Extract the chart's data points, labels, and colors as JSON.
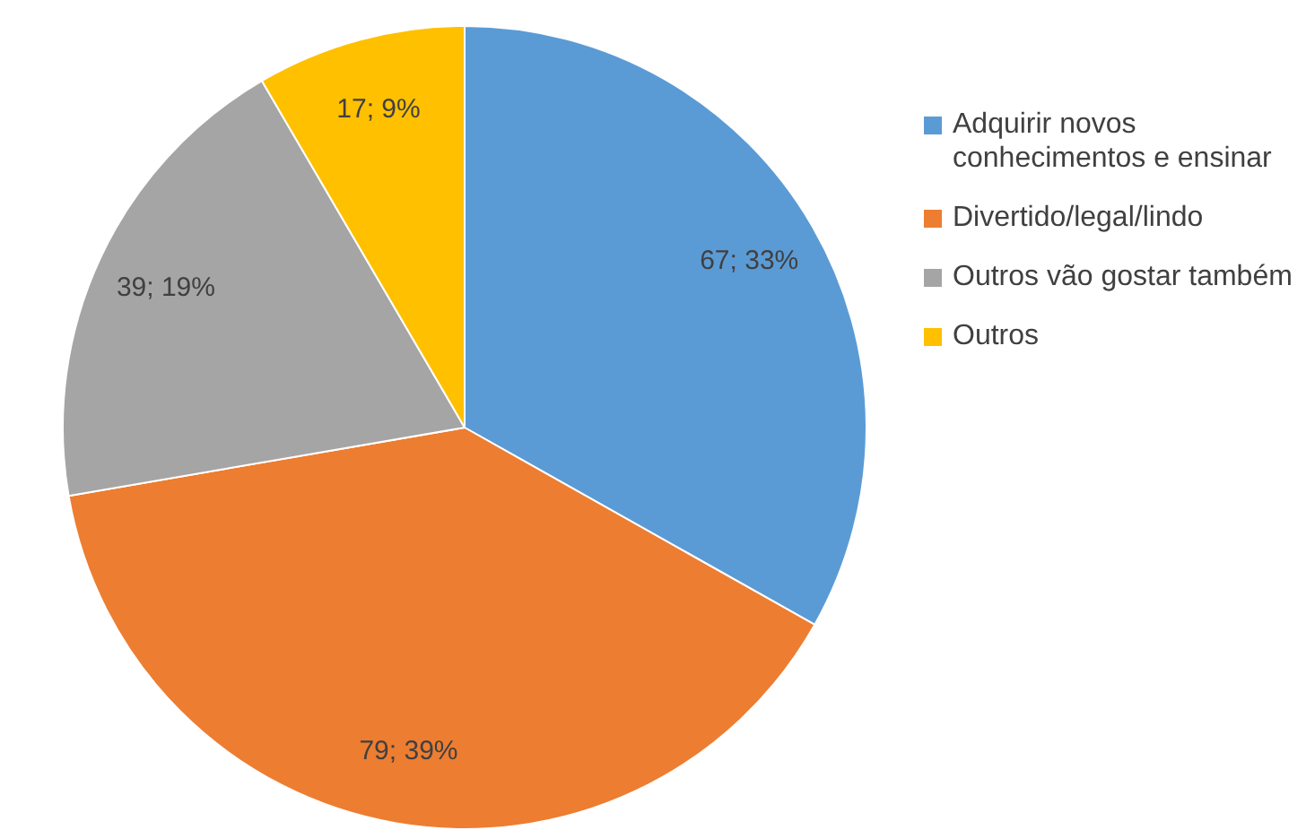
{
  "chart_data": {
    "type": "pie",
    "categories": [
      "Adquirir novos conhecimentos e ensinar",
      "Divertido/legal/lindo",
      "Outros vão gostar também",
      "Outros"
    ],
    "values": [
      67,
      79,
      39,
      17
    ],
    "colors": [
      "#5b9bd5",
      "#ed7d31",
      "#a5a5a5",
      "#ffc000"
    ],
    "value_labels": [
      "67; 33%",
      "79; 39%",
      "39; 19%",
      "17; 9%"
    ],
    "legend": "right"
  }
}
